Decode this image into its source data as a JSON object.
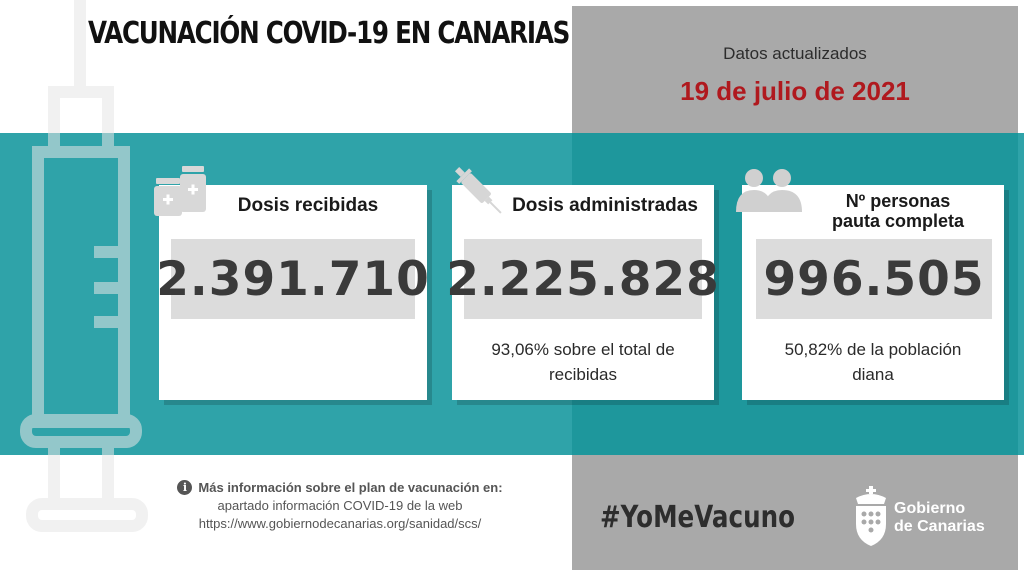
{
  "header": {
    "title": "VACUNACIÓN COVID-19 EN CANARIAS"
  },
  "update": {
    "label": "Datos actualizados",
    "date": "19 de julio de 2021"
  },
  "cards": [
    {
      "title": "Dosis recibidas",
      "value": "2.391.710",
      "note_line1": "",
      "note_line2": "",
      "icon": "medicine-bottles-icon"
    },
    {
      "title": "Dosis administradas",
      "value": "2.225.828",
      "note_line1": "93,06% sobre el total de",
      "note_line2": "recibidas",
      "icon": "syringe-icon"
    },
    {
      "title_line1": "Nº personas",
      "title_line2": "pauta completa",
      "value": "996.505",
      "note_line1": "50,82% de la población",
      "note_line2": "diana",
      "icon": "people-icon"
    }
  ],
  "footer": {
    "info_title": "Más información sobre el plan de vacunación en:",
    "info_line1": "apartado información COVID-19 de la web",
    "info_line2": "https://www.gobiernodecanarias.org/sanidad/scs/",
    "hashtag": "#YoMeVacuno",
    "gov_line1": "Gobierno",
    "gov_line2": "de Canarias"
  },
  "colors": {
    "teal_band": "#2fa3a9",
    "gray_panel": "#a9a9a9",
    "date_red": "#b0191e",
    "value_box": "#dcdcdc"
  }
}
